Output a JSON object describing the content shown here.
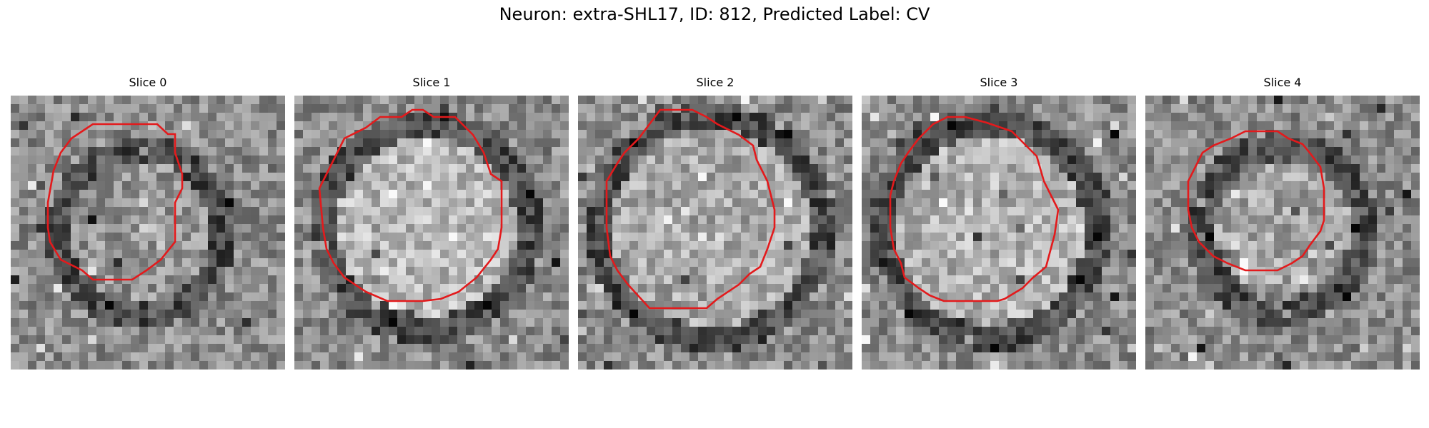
{
  "figure": {
    "title": "Neuron: extra-SHL17, ID: 812, Predicted Label: CV"
  },
  "colors": {
    "contour": "#e31a1c",
    "colormap": "gray"
  },
  "panels": [
    {
      "title": "Slice 0"
    },
    {
      "title": "Slice 1"
    },
    {
      "title": "Slice 2"
    },
    {
      "title": "Slice 3"
    },
    {
      "title": "Slice 4"
    }
  ]
}
